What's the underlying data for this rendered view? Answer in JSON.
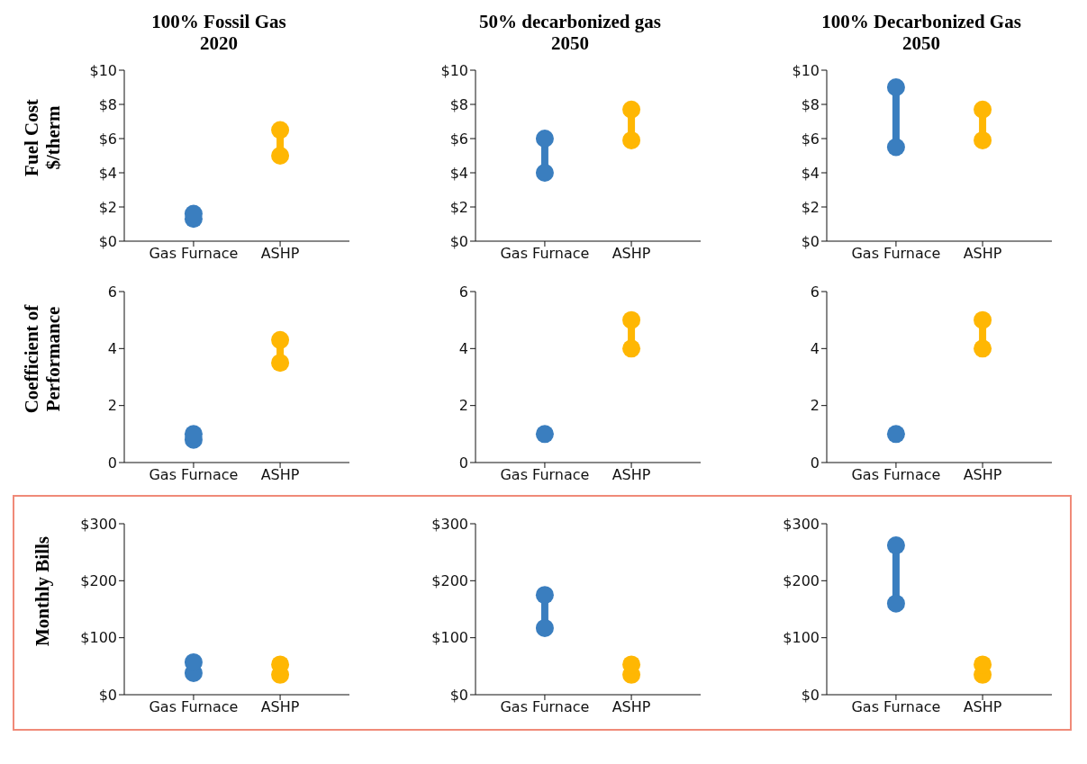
{
  "chart_data": [
    {
      "type": "line",
      "title": "100% Fossil Gas\n2020",
      "ylabel": "Fuel Cost\n$/therm",
      "categories": [
        "Gas Furnace",
        "ASHP"
      ],
      "marker": "circle",
      "ylim": [
        0,
        10
      ],
      "yticks": [
        {
          "value": 0,
          "label": "$0"
        },
        {
          "value": 2,
          "label": "$2"
        },
        {
          "value": 4,
          "label": "$4"
        },
        {
          "value": 6,
          "label": "$6"
        },
        {
          "value": 8,
          "label": "$8"
        },
        {
          "value": 10,
          "label": "$10"
        }
      ],
      "series": [
        {
          "type": "scatter",
          "color": "#3a7ebf",
          "x": [
            "Gas Furnace",
            "Gas Furnace"
          ],
          "values": [
            1.3,
            1.6
          ]
        },
        {
          "color": "#ffb703",
          "x": [
            "ASHP",
            "ASHP"
          ],
          "values": [
            5.0,
            6.5
          ]
        }
      ]
    },
    {
      "type": "line",
      "title": "50% decarbonized gas\n2050",
      "categories": [
        "Gas Furnace",
        "ASHP"
      ],
      "marker": "circle",
      "ylim": [
        0,
        10
      ],
      "yticks": [
        {
          "value": 0,
          "label": "$0"
        },
        {
          "value": 2,
          "label": "$2"
        },
        {
          "value": 4,
          "label": "$4"
        },
        {
          "value": 6,
          "label": "$6"
        },
        {
          "value": 8,
          "label": "$8"
        },
        {
          "value": 10,
          "label": "$10"
        }
      ],
      "series": [
        {
          "color": "#3a7ebf",
          "x": [
            "Gas Furnace",
            "Gas Furnace"
          ],
          "values": [
            4.0,
            6.0
          ]
        },
        {
          "color": "#ffb703",
          "x": [
            "ASHP",
            "ASHP"
          ],
          "values": [
            5.9,
            7.7
          ]
        }
      ]
    },
    {
      "type": "line",
      "title": "100% Decarbonized Gas\n2050",
      "categories": [
        "Gas Furnace",
        "ASHP"
      ],
      "marker": "circle",
      "ylim": [
        0,
        10
      ],
      "yticks": [
        {
          "value": 0,
          "label": "$0"
        },
        {
          "value": 2,
          "label": "$2"
        },
        {
          "value": 4,
          "label": "$4"
        },
        {
          "value": 6,
          "label": "$6"
        },
        {
          "value": 8,
          "label": "$8"
        },
        {
          "value": 10,
          "label": "$10"
        }
      ],
      "series": [
        {
          "color": "#3a7ebf",
          "x": [
            "Gas Furnace",
            "Gas Furnace"
          ],
          "values": [
            5.5,
            9.0
          ]
        },
        {
          "color": "#ffb703",
          "x": [
            "ASHP",
            "ASHP"
          ],
          "values": [
            5.9,
            7.7
          ]
        }
      ]
    },
    {
      "type": "line",
      "ylabel": "Coefficient of\nPerformance",
      "categories": [
        "Gas Furnace",
        "ASHP"
      ],
      "marker": "circle",
      "ylim": [
        0,
        6
      ],
      "yticks": [
        0,
        2,
        4,
        6
      ],
      "series": [
        {
          "type": "scatter",
          "color": "#3a7ebf",
          "x": [
            "Gas Furnace",
            "Gas Furnace"
          ],
          "values": [
            0.8,
            1.0
          ]
        },
        {
          "color": "#ffb703",
          "x": [
            "ASHP",
            "ASHP"
          ],
          "values": [
            3.5,
            4.3
          ]
        }
      ]
    },
    {
      "type": "line",
      "categories": [
        "Gas Furnace",
        "ASHP"
      ],
      "marker": "circle",
      "ylim": [
        0,
        6
      ],
      "yticks": [
        0,
        2,
        4,
        6
      ],
      "series": [
        {
          "type": "scatter",
          "color": "#3a7ebf",
          "x": [
            "Gas Furnace"
          ],
          "values": [
            1.0
          ]
        },
        {
          "color": "#ffb703",
          "x": [
            "ASHP",
            "ASHP"
          ],
          "values": [
            4.0,
            5.0
          ]
        }
      ]
    },
    {
      "type": "line",
      "categories": [
        "Gas Furnace",
        "ASHP"
      ],
      "marker": "circle",
      "ylim": [
        0,
        6
      ],
      "yticks": [
        0,
        2,
        4,
        6
      ],
      "series": [
        {
          "type": "scatter",
          "color": "#3a7ebf",
          "x": [
            "Gas Furnace"
          ],
          "values": [
            1.0
          ]
        },
        {
          "color": "#ffb703",
          "x": [
            "ASHP",
            "ASHP"
          ],
          "values": [
            4.0,
            5.0
          ]
        }
      ]
    },
    {
      "type": "scatter",
      "ylabel": "Monthly Bills",
      "categories": [
        "Gas Furnace",
        "ASHP"
      ],
      "marker": "circle",
      "ylim": [
        0,
        300
      ],
      "yticks": [
        {
          "value": 0,
          "label": "$0"
        },
        {
          "value": 100,
          "label": "$100"
        },
        {
          "value": 200,
          "label": "$200"
        },
        {
          "value": 300,
          "label": "$300"
        }
      ],
      "series": [
        {
          "color": "#3a7ebf",
          "x": [
            "Gas Furnace",
            "Gas Furnace"
          ],
          "values": [
            38,
            57
          ]
        },
        {
          "color": "#ffb703",
          "x": [
            "ASHP",
            "ASHP"
          ],
          "values": [
            35,
            53
          ]
        }
      ]
    },
    {
      "type": "line",
      "categories": [
        "Gas Furnace",
        "ASHP"
      ],
      "marker": "circle",
      "ylim": [
        0,
        300
      ],
      "yticks": [
        {
          "value": 0,
          "label": "$0"
        },
        {
          "value": 100,
          "label": "$100"
        },
        {
          "value": 200,
          "label": "$200"
        },
        {
          "value": 300,
          "label": "$300"
        }
      ],
      "series": [
        {
          "color": "#3a7ebf",
          "x": [
            "Gas Furnace",
            "Gas Furnace"
          ],
          "values": [
            117,
            175
          ]
        },
        {
          "type": "scatter",
          "color": "#ffb703",
          "x": [
            "ASHP",
            "ASHP"
          ],
          "values": [
            35,
            53
          ]
        }
      ]
    },
    {
      "type": "line",
      "categories": [
        "Gas Furnace",
        "ASHP"
      ],
      "marker": "circle",
      "ylim": [
        0,
        300
      ],
      "yticks": [
        {
          "value": 0,
          "label": "$0"
        },
        {
          "value": 100,
          "label": "$100"
        },
        {
          "value": 200,
          "label": "$200"
        },
        {
          "value": 300,
          "label": "$300"
        }
      ],
      "series": [
        {
          "color": "#3a7ebf",
          "x": [
            "Gas Furnace",
            "Gas Furnace"
          ],
          "values": [
            160,
            262
          ]
        },
        {
          "type": "scatter",
          "color": "#ffb703",
          "x": [
            "ASHP",
            "ASHP"
          ],
          "values": [
            35,
            53
          ]
        }
      ]
    }
  ]
}
